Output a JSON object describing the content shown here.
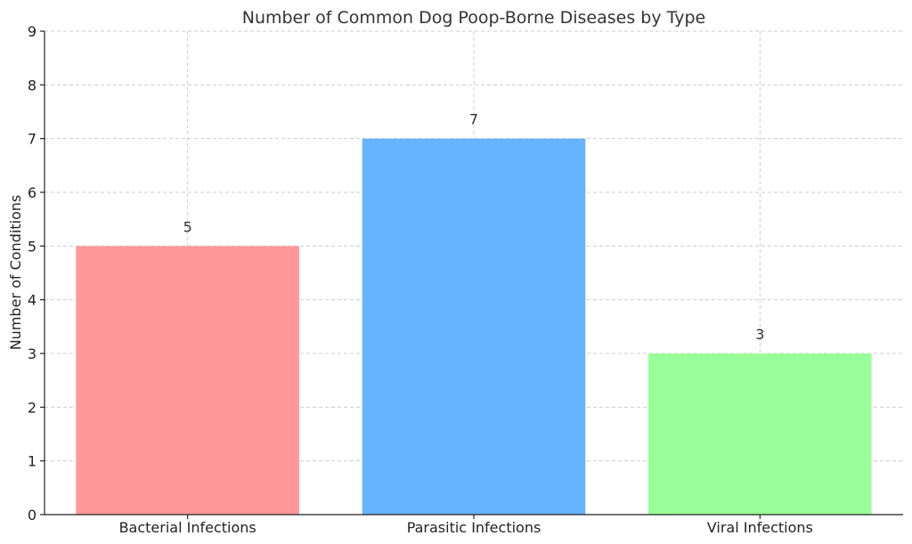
{
  "chart_data": {
    "type": "bar",
    "title": "Number of Common Dog Poop-Borne Diseases by Type",
    "xlabel": "",
    "ylabel": "Number of Conditions",
    "categories": [
      "Bacterial Infections",
      "Parasitic Infections",
      "Viral Infections"
    ],
    "values": [
      5,
      7,
      3
    ],
    "colors": [
      "#ff9999",
      "#66b3ff",
      "#99ff99"
    ],
    "ylim": [
      0,
      9
    ],
    "yticks": [
      0,
      1,
      2,
      3,
      4,
      5,
      6,
      7,
      8,
      9
    ],
    "grid": true,
    "value_labels": [
      "5",
      "7",
      "3"
    ]
  }
}
